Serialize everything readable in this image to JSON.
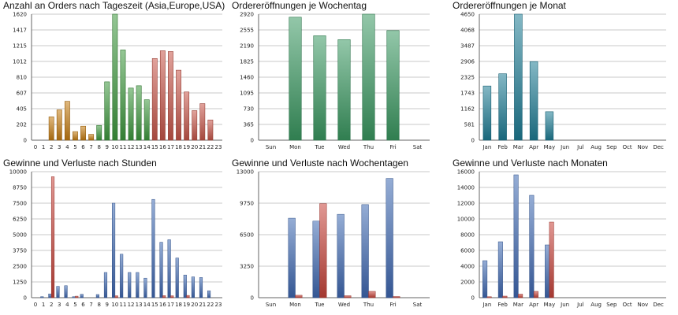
{
  "chart_data": [
    {
      "type": "bar",
      "title": "Anzahl an Orders nach Tageszeit (Asia,Europe,USA)",
      "categories": [
        "0",
        "1",
        "2",
        "3",
        "4",
        "5",
        "6",
        "7",
        "8",
        "9",
        "10",
        "11",
        "12",
        "13",
        "14",
        "15",
        "16",
        "17",
        "18",
        "19",
        "20",
        "21",
        "22",
        "23"
      ],
      "yticks": [
        0,
        202,
        405,
        607,
        810,
        1012,
        1215,
        1417,
        1620
      ],
      "ylim": [
        0,
        1620
      ],
      "values": [
        0,
        0,
        300,
        390,
        500,
        110,
        180,
        75,
        190,
        750,
        1620,
        1160,
        670,
        700,
        520,
        1050,
        1150,
        1140,
        900,
        620,
        380,
        470,
        260,
        0
      ],
      "colors": [
        "#c77d12",
        "#c77d12",
        "#c77d12",
        "#c77d12",
        "#c77d12",
        "#c77d12",
        "#c77d12",
        "#c77d12",
        "#3e9a3e",
        "#3e9a3e",
        "#3e9a3e",
        "#3e9a3e",
        "#3e9a3e",
        "#3e9a3e",
        "#3e9a3e",
        "#c8564a",
        "#c8564a",
        "#c8564a",
        "#c8564a",
        "#c8564a",
        "#c8564a",
        "#c8564a",
        "#c8564a",
        "#c8564a"
      ],
      "grid": true
    },
    {
      "type": "bar",
      "title": "Ordereröffnungen je Wochentag",
      "categories": [
        "Sun",
        "Mon",
        "Tue",
        "Wed",
        "Thu",
        "Fri",
        "Sat"
      ],
      "yticks": [
        0,
        365,
        730,
        1095,
        1460,
        1825,
        2190,
        2555,
        2920
      ],
      "ylim": [
        0,
        2920
      ],
      "values": [
        0,
        2850,
        2420,
        2330,
        2920,
        2540,
        0
      ],
      "colors": [
        "#3a9a62"
      ],
      "grid": true
    },
    {
      "type": "bar",
      "title": "Ordereröffnungen je Monat",
      "categories": [
        "Jan",
        "Feb",
        "Mar",
        "Apr",
        "May",
        "Jun",
        "Jul",
        "Aug",
        "Sep",
        "Oct",
        "Nov",
        "Dec"
      ],
      "yticks": [
        0,
        581,
        1162,
        1743,
        2325,
        2906,
        3487,
        4068,
        4650
      ],
      "ylim": [
        0,
        4650
      ],
      "values": [
        2000,
        2450,
        4650,
        2900,
        1050,
        0,
        0,
        0,
        0,
        0,
        0,
        0
      ],
      "colors": [
        "#1f7d96"
      ],
      "grid": true
    },
    {
      "type": "bar",
      "title": "Gewinne und Verluste nach Stunden",
      "categories": [
        "0",
        "1",
        "2",
        "3",
        "4",
        "5",
        "6",
        "7",
        "8",
        "9",
        "10",
        "11",
        "12",
        "13",
        "14",
        "15",
        "16",
        "17",
        "18",
        "19",
        "20",
        "21",
        "22",
        "23"
      ],
      "yticks": [
        0,
        1250,
        2500,
        3750,
        5000,
        6250,
        7500,
        8750,
        10000
      ],
      "ylim": [
        0,
        10000
      ],
      "series": [
        {
          "color": "#3f69b3",
          "values": [
            0,
            80,
            300,
            900,
            950,
            80,
            270,
            0,
            250,
            2000,
            7500,
            3450,
            2000,
            2000,
            1550,
            7800,
            4400,
            4600,
            3150,
            1800,
            1650,
            1600,
            550,
            0
          ]
        },
        {
          "color": "#c8443a",
          "values": [
            0,
            0,
            9600,
            0,
            0,
            120,
            0,
            0,
            0,
            0,
            150,
            0,
            0,
            0,
            0,
            0,
            160,
            150,
            0,
            180,
            0,
            0,
            0,
            0
          ]
        }
      ],
      "grid": true
    },
    {
      "type": "bar",
      "title": "Gewinne und Verluste nach Wochentagen",
      "categories": [
        "Sun",
        "Mon",
        "Tue",
        "Wed",
        "Thu",
        "Fri",
        "Sat"
      ],
      "yticks": [
        0,
        3250,
        6500,
        9750,
        13000
      ],
      "ylim": [
        0,
        13000
      ],
      "series": [
        {
          "color": "#3f69b3",
          "values": [
            0,
            8200,
            7900,
            8600,
            9600,
            12300,
            0
          ]
        },
        {
          "color": "#c8443a",
          "values": [
            0,
            250,
            9700,
            200,
            650,
            120,
            0
          ]
        }
      ],
      "grid": true
    },
    {
      "type": "bar",
      "title": "Gewinne und Verluste nach Monaten",
      "categories": [
        "Jan",
        "Feb",
        "Mar",
        "Apr",
        "May",
        "Jun",
        "Jul",
        "Aug",
        "Sep",
        "Oct",
        "Nov",
        "Dec"
      ],
      "yticks": [
        0,
        2000,
        4000,
        6000,
        8000,
        10000,
        12000,
        14000,
        16000
      ],
      "ylim": [
        0,
        16000
      ],
      "series": [
        {
          "color": "#3f69b3",
          "values": [
            4700,
            7100,
            15600,
            13000,
            6700,
            0,
            0,
            0,
            0,
            0,
            0,
            0
          ]
        },
        {
          "color": "#c8443a",
          "values": [
            120,
            200,
            450,
            800,
            9600,
            0,
            0,
            0,
            0,
            0,
            0,
            0
          ]
        }
      ],
      "grid": true
    }
  ]
}
